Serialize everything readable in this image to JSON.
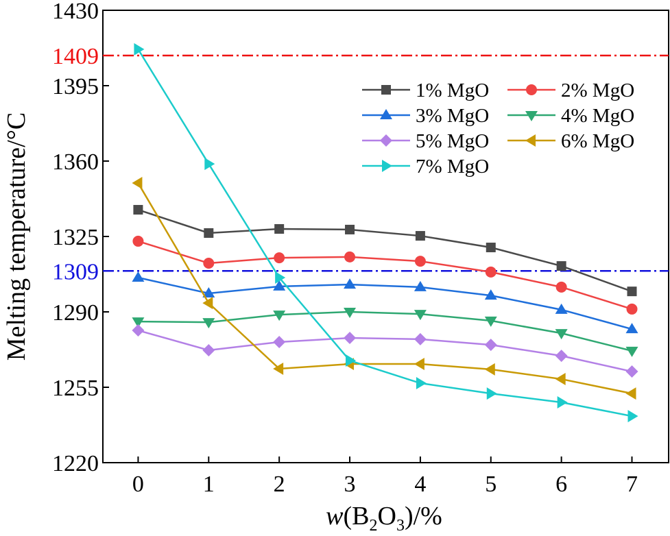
{
  "chart_data": {
    "type": "line",
    "title": "",
    "xlabel_prefix": "w",
    "xlabel_mid": "(B",
    "xlabel_sub2": "2",
    "xlabel_o": "O",
    "xlabel_sub3": "3",
    "xlabel_suffix": ")/%",
    "ylabel": "Melting temperature/°C",
    "x": [
      0,
      1,
      2,
      3,
      4,
      5,
      6,
      7
    ],
    "xlim": [
      -0.5,
      7.52
    ],
    "ylim": [
      1220,
      1430
    ],
    "yticks": [
      1220,
      1255,
      1290,
      1325,
      1360,
      1395,
      1430
    ],
    "xticks": [
      0,
      1,
      2,
      3,
      4,
      5,
      6,
      7
    ],
    "grid": false,
    "legend_position": "top-right",
    "reference_lines": [
      {
        "value": 1409,
        "label": "1409",
        "color": "#ee1111",
        "style": "dash-dot"
      },
      {
        "value": 1309,
        "label": "1309",
        "color": "#1111dd",
        "style": "dash-dot"
      }
    ],
    "series": [
      {
        "name": "1% MgO",
        "color": "#4a4a4a",
        "marker": "square",
        "values": [
          1337.4,
          1326.6,
          1328.5,
          1328.2,
          1325.3,
          1319.9,
          1311.3,
          1299.5
        ]
      },
      {
        "name": "2% MgO",
        "color": "#ef4444",
        "marker": "circle",
        "values": [
          1322.8,
          1312.6,
          1315.1,
          1315.5,
          1313.5,
          1308.5,
          1301.5,
          1291.3
        ]
      },
      {
        "name": "3% MgO",
        "color": "#1f6fdb",
        "marker": "triangle-up",
        "values": [
          1305.9,
          1298.6,
          1301.8,
          1302.7,
          1301.5,
          1297.6,
          1291.0,
          1282.0
        ]
      },
      {
        "name": "4% MgO",
        "color": "#2fa872",
        "marker": "triangle-down",
        "values": [
          1285.5,
          1285.2,
          1288.7,
          1290.0,
          1289.0,
          1285.9,
          1280.1,
          1271.9
        ]
      },
      {
        "name": "5% MgO",
        "color": "#b380e6",
        "marker": "diamond",
        "values": [
          1281.4,
          1272.2,
          1276.0,
          1277.9,
          1277.3,
          1274.7,
          1269.6,
          1262.3
        ]
      },
      {
        "name": "6% MgO",
        "color": "#c99a06",
        "marker": "triangle-left",
        "values": [
          1349.8,
          1294.1,
          1263.6,
          1265.8,
          1265.8,
          1263.3,
          1258.8,
          1252.1
        ]
      },
      {
        "name": "7% MgO",
        "color": "#1ccbcb",
        "marker": "triangle-right",
        "values": [
          1411.9,
          1358.7,
          1305.9,
          1267.4,
          1256.9,
          1252.1,
          1248.0,
          1241.6
        ]
      }
    ]
  }
}
